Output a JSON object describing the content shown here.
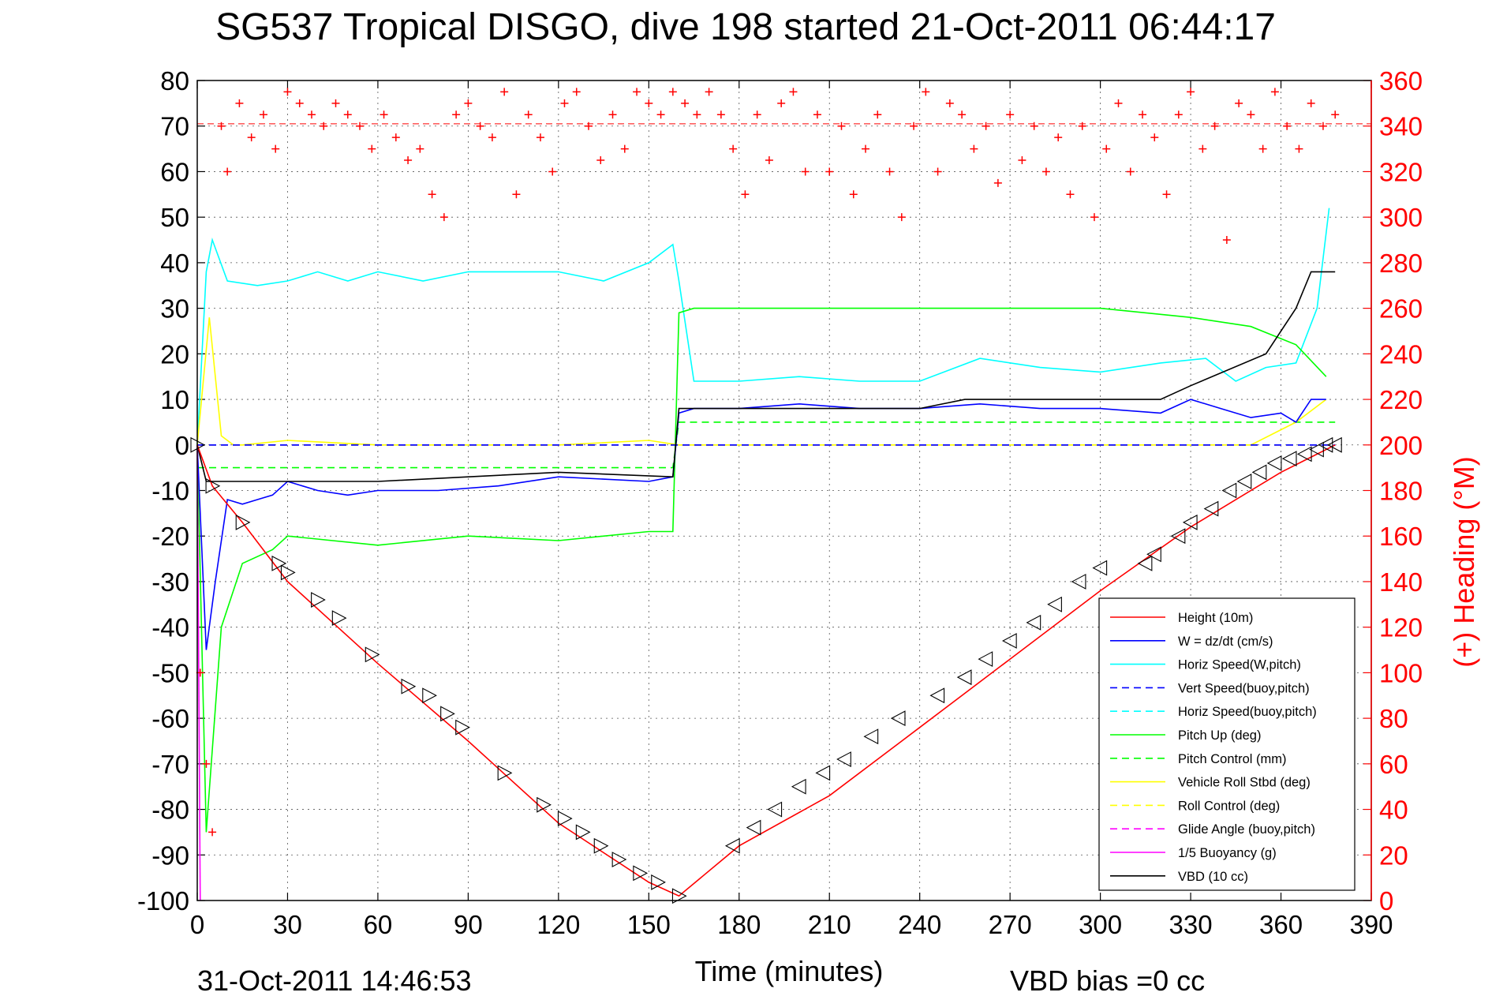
{
  "chart_data": {
    "type": "line",
    "title": "SG537 Tropical DISGO, dive 198 started 21-Oct-2011 06:44:17",
    "xlabel": "Time (minutes)",
    "ylabel_right": "(+) Heading (°M)",
    "footer_date": "31-Oct-2011 14:46:53",
    "footer_note": "VBD bias =0 cc",
    "xlim": [
      0,
      390
    ],
    "ylim": [
      -100,
      80
    ],
    "ylim_right": [
      0,
      360
    ],
    "grid": true,
    "legend_position": "bottom-right",
    "x_ticks": [
      "0",
      "30",
      "60",
      "90",
      "120",
      "150",
      "180",
      "210",
      "240",
      "270",
      "300",
      "330",
      "360",
      "390"
    ],
    "y_ticks": [
      "80",
      "70",
      "60",
      "50",
      "40",
      "30",
      "20",
      "10",
      "0",
      "-10",
      "-20",
      "-30",
      "-40",
      "-50",
      "-60",
      "-70",
      "-80",
      "-90",
      "-100"
    ],
    "y_ticks_right": [
      "360",
      "340",
      "320",
      "300",
      "280",
      "260",
      "240",
      "220",
      "200",
      "180",
      "160",
      "140",
      "120",
      "100",
      "80",
      "60",
      "40",
      "20",
      "0"
    ],
    "heading_reference": 341,
    "series": [
      {
        "name": "Height (10m)",
        "color": "#ff0000",
        "dash": "solid",
        "x": [
          0,
          5,
          15,
          30,
          60,
          90,
          120,
          150,
          160,
          180,
          210,
          240,
          270,
          300,
          330,
          360,
          378
        ],
        "y": [
          0,
          -9,
          -17,
          -30,
          -48,
          -65,
          -83,
          -96,
          -99,
          -88,
          -77,
          -62,
          -47,
          -32,
          -18,
          -6,
          0
        ]
      },
      {
        "name": "W = dz/dt (cm/s)",
        "color": "#0000ff",
        "dash": "solid",
        "x": [
          0,
          3,
          6,
          10,
          15,
          20,
          25,
          30,
          40,
          50,
          60,
          80,
          100,
          120,
          150,
          158,
          160,
          165,
          180,
          200,
          220,
          240,
          260,
          280,
          300,
          320,
          330,
          340,
          350,
          360,
          365,
          370,
          375
        ],
        "y": [
          0,
          -45,
          -30,
          -12,
          -13,
          -12,
          -11,
          -8,
          -10,
          -11,
          -10,
          -10,
          -9,
          -7,
          -8,
          -7,
          7,
          8,
          8,
          9,
          8,
          8,
          9,
          8,
          8,
          7,
          10,
          8,
          6,
          7,
          5,
          10,
          10
        ]
      },
      {
        "name": "Horiz Speed(W,pitch)",
        "color": "#00ffff",
        "dash": "solid",
        "x": [
          0,
          3,
          5,
          10,
          20,
          30,
          40,
          50,
          60,
          75,
          90,
          105,
          120,
          135,
          150,
          158,
          160,
          165,
          180,
          200,
          220,
          240,
          260,
          280,
          300,
          320,
          335,
          345,
          355,
          365,
          372,
          376
        ],
        "y": [
          0,
          38,
          45,
          36,
          35,
          36,
          38,
          36,
          38,
          36,
          38,
          38,
          38,
          36,
          40,
          44,
          36,
          14,
          14,
          15,
          14,
          14,
          19,
          17,
          16,
          18,
          19,
          14,
          17,
          18,
          30,
          52
        ]
      },
      {
        "name": "Vert Speed(buoy,pitch)",
        "color": "#0000ff",
        "dash": "dashed",
        "x": [
          0,
          378
        ],
        "y": [
          0,
          0
        ]
      },
      {
        "name": "Horiz Speed(buoy,pitch)",
        "color": "#00ffff",
        "dash": "dashed",
        "x": [
          0,
          378
        ],
        "y": [
          0,
          0
        ]
      },
      {
        "name": "Pitch Up (deg)",
        "color": "#00ff00",
        "dash": "solid",
        "x": [
          0,
          3,
          8,
          15,
          25,
          30,
          60,
          90,
          120,
          150,
          158,
          160,
          165,
          180,
          200,
          230,
          250,
          270,
          300,
          330,
          350,
          365,
          375
        ],
        "y": [
          0,
          -85,
          -40,
          -26,
          -23,
          -20,
          -22,
          -20,
          -21,
          -19,
          -19,
          29,
          30,
          30,
          30,
          30,
          30,
          30,
          30,
          28,
          26,
          22,
          15
        ]
      },
      {
        "name": "Pitch Control (mm)",
        "color": "#00ff00",
        "dash": "dashed",
        "x": [
          0,
          158,
          160,
          378
        ],
        "y": [
          -5,
          -5,
          5,
          5
        ]
      },
      {
        "name": "Vehicle Roll Stbd (deg)",
        "color": "#ffff00",
        "dash": "solid",
        "x": [
          0,
          4,
          8,
          12,
          15,
          30,
          60,
          90,
          120,
          150,
          160,
          200,
          250,
          300,
          330,
          350,
          365,
          375
        ],
        "y": [
          0,
          28,
          2,
          0,
          0,
          1,
          0,
          0,
          0,
          1,
          0,
          0,
          0,
          0,
          0,
          0,
          5,
          10
        ]
      },
      {
        "name": "Roll Control (deg)",
        "color": "#ffff00",
        "dash": "dashed",
        "x": [
          0,
          378
        ],
        "y": [
          0,
          0
        ]
      },
      {
        "name": "Glide Angle (buoy,pitch)",
        "color": "#ff00ff",
        "dash": "dashed",
        "x": [
          0,
          378
        ],
        "y": [
          0,
          0
        ]
      },
      {
        "name": "1/5 Buoyancy (g)",
        "color": "#ff00ff",
        "dash": "solid",
        "x": [
          0,
          1,
          1
        ],
        "y": [
          0,
          -100,
          -100
        ]
      },
      {
        "name": "VBD (10 cc)",
        "color": "#000000",
        "dash": "solid",
        "x": [
          0,
          3,
          5,
          15,
          30,
          60,
          90,
          120,
          158,
          160,
          240,
          255,
          320,
          330,
          355,
          365,
          370,
          378
        ],
        "y": [
          0,
          -8,
          -8,
          -8,
          -8,
          -8,
          -7,
          -6,
          -7,
          8,
          8,
          10,
          10,
          13,
          20,
          30,
          38,
          38
        ]
      }
    ],
    "heading": {
      "name": "(+) Heading (°M)",
      "color": "#ff0000",
      "marker": "+",
      "x": [
        1,
        3,
        5,
        8,
        10,
        14,
        18,
        22,
        26,
        30,
        34,
        38,
        42,
        46,
        50,
        54,
        58,
        62,
        66,
        70,
        74,
        78,
        82,
        86,
        90,
        94,
        98,
        102,
        106,
        110,
        114,
        118,
        122,
        126,
        130,
        134,
        138,
        142,
        146,
        150,
        154,
        158,
        162,
        166,
        170,
        174,
        178,
        182,
        186,
        190,
        194,
        198,
        202,
        206,
        210,
        214,
        218,
        222,
        226,
        230,
        234,
        238,
        242,
        246,
        250,
        254,
        258,
        262,
        266,
        270,
        274,
        278,
        282,
        286,
        290,
        294,
        298,
        302,
        306,
        310,
        314,
        318,
        322,
        326,
        330,
        334,
        338,
        342,
        346,
        350,
        354,
        358,
        362,
        366,
        370,
        374,
        378
      ],
      "y": [
        100,
        60,
        30,
        340,
        320,
        350,
        335,
        345,
        330,
        355,
        350,
        345,
        340,
        350,
        345,
        340,
        330,
        345,
        335,
        325,
        330,
        310,
        300,
        345,
        350,
        340,
        335,
        355,
        310,
        345,
        335,
        320,
        350,
        355,
        340,
        325,
        345,
        330,
        355,
        350,
        345,
        355,
        350,
        345,
        355,
        345,
        330,
        310,
        345,
        325,
        350,
        355,
        320,
        345,
        320,
        340,
        310,
        330,
        345,
        320,
        300,
        340,
        355,
        320,
        350,
        345,
        330,
        340,
        315,
        345,
        325,
        340,
        320,
        335,
        310,
        340,
        300,
        330,
        350,
        320,
        345,
        335,
        310,
        345,
        355,
        330,
        340,
        290,
        350,
        345,
        330,
        355,
        340,
        330,
        350,
        340,
        345
      ]
    },
    "markers": {
      "name": "Height triangle markers",
      "x": [
        0,
        5,
        15,
        27,
        30,
        40,
        47,
        58,
        70,
        77,
        83,
        88,
        102,
        115,
        122,
        128,
        134,
        140,
        147,
        153,
        160,
        178,
        185,
        192,
        200,
        208,
        215,
        224,
        233,
        246,
        255,
        262,
        270,
        278,
        285,
        293,
        300,
        315,
        318,
        326,
        330,
        337,
        343,
        348,
        353,
        358,
        363,
        368,
        372,
        375,
        378
      ],
      "y": [
        0,
        -9,
        -17,
        -26,
        -28,
        -34,
        -38,
        -46,
        -53,
        -55,
        -59,
        -62,
        -72,
        -79,
        -82,
        -85,
        -88,
        -91,
        -94,
        -96,
        -99,
        -88,
        -84,
        -80,
        -75,
        -72,
        -69,
        -64,
        -60,
        -55,
        -51,
        -47,
        -43,
        -39,
        -35,
        -30,
        -27,
        -26,
        -24,
        -20,
        -17,
        -14,
        -10,
        -8,
        -6,
        -4,
        -3,
        -2,
        -1,
        0,
        0
      ]
    },
    "legend": [
      "Height (10m)",
      "W = dz/dt (cm/s)",
      "Horiz Speed(W,pitch)",
      "Vert Speed(buoy,pitch)",
      "Horiz Speed(buoy,pitch)",
      "Pitch Up (deg)",
      "Pitch Control (mm)",
      "Vehicle Roll Stbd (deg)",
      "Roll Control (deg)",
      "Glide Angle (buoy,pitch)",
      "1/5 Buoyancy (g)",
      "VBD (10 cc)"
    ]
  }
}
